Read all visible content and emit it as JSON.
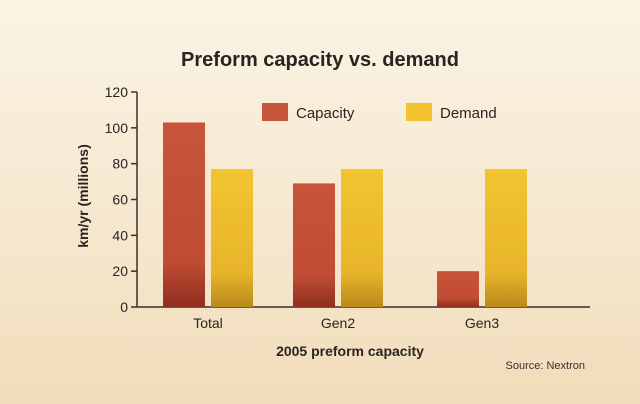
{
  "chart_data": {
    "type": "bar",
    "title": "Preform capacity vs. demand",
    "xlabel": "2005 preform capacity",
    "ylabel": "km/yr (millions)",
    "categories": [
      "Total",
      "Gen2",
      "Gen3"
    ],
    "series": [
      {
        "name": "Capacity",
        "color": "#c8553a",
        "values": [
          103,
          69,
          20
        ]
      },
      {
        "name": "Demand",
        "color": "#f2c12e",
        "values": [
          77,
          77,
          77
        ]
      }
    ],
    "ylim": [
      0,
      120
    ],
    "yticks": [
      0,
      20,
      40,
      60,
      80,
      100,
      120
    ],
    "grid": false,
    "legend": "top-center",
    "source": "Source: Nextron"
  }
}
